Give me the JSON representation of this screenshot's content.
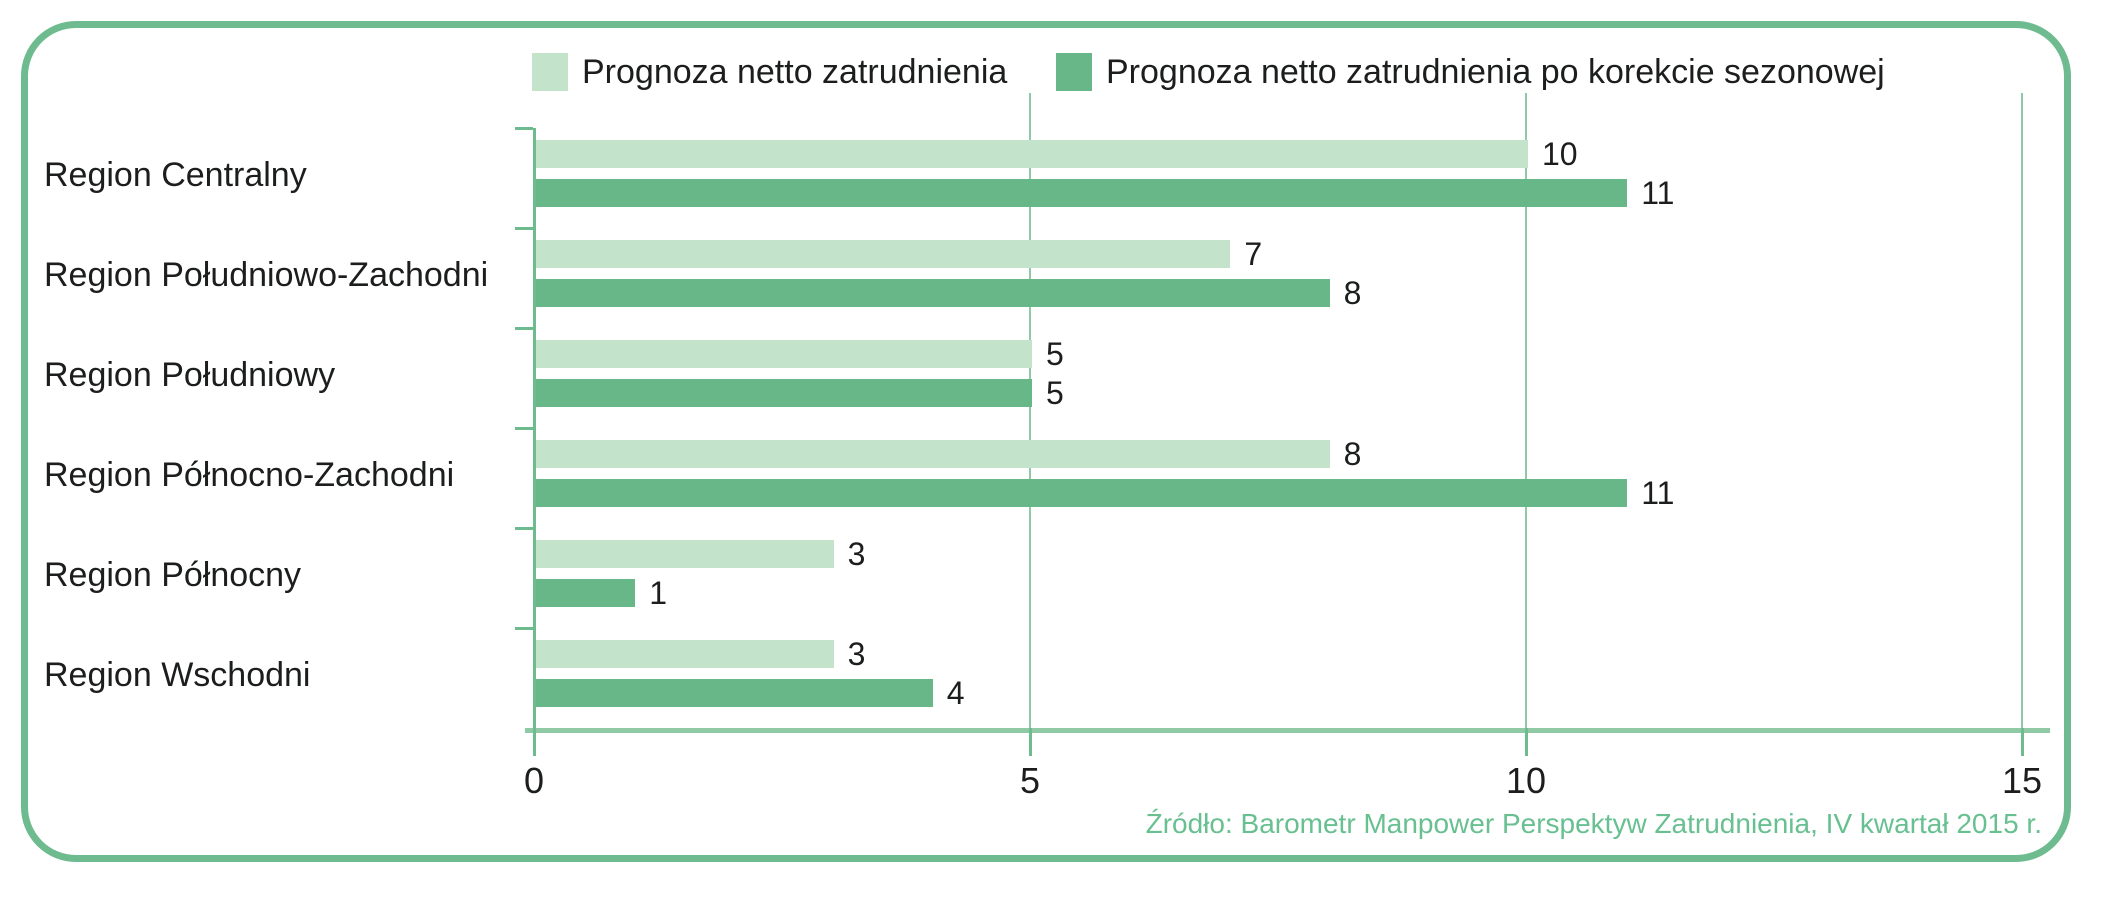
{
  "chart_data": {
    "type": "bar",
    "orientation": "horizontal",
    "title": "",
    "xlabel": "",
    "ylabel": "",
    "categories": [
      "Region Centralny",
      "Region Południowo-Zachodni",
      "Region Południowy",
      "Region Północno-Zachodni",
      "Region Północny",
      "Region Wschodni"
    ],
    "series": [
      {
        "name": "Prognoza netto zatrudnienia",
        "color": "#c3e3cb",
        "values": [
          10,
          7,
          5,
          8,
          3,
          3
        ]
      },
      {
        "name": "Prognoza netto zatrudnienia po korekcie sezonowej",
        "color": "#68b788",
        "values": [
          11,
          8,
          5,
          11,
          1,
          4
        ]
      }
    ],
    "x_ticks": [
      0,
      5,
      10,
      15
    ],
    "xlim": [
      0,
      15
    ],
    "grid": true,
    "legend_position": "top",
    "data_labels": true,
    "source": "Źródło: Barometr Manpower Perspektyw Zatrudnienia, IV kwartał 2015 r.",
    "colors": {
      "bar_light": "#c3e3cb",
      "bar_dark": "#68b788",
      "frame_border": "#6dbb8e",
      "gridline": "#8fc9a6",
      "axis": "#6dbb8e",
      "label_text": "#1c1e1d",
      "source_text": "#68c091"
    }
  }
}
